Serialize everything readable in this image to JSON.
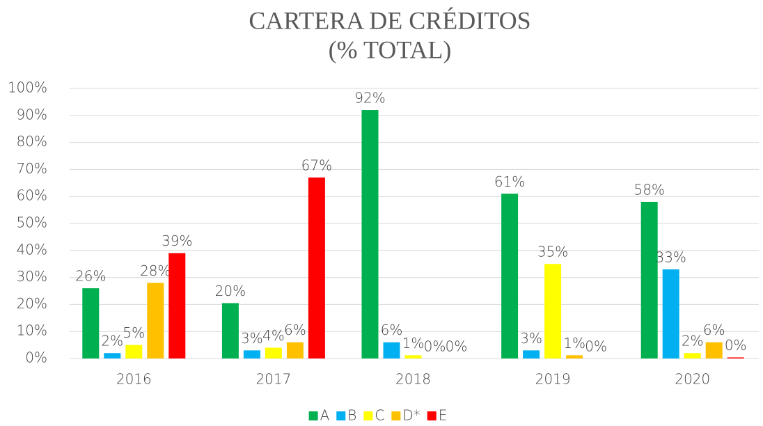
{
  "chart_data": {
    "type": "bar",
    "title": "CARTERA DE CRÉDITOS",
    "subtitle": "(% TOTAL)",
    "categories": [
      "2016",
      "2017",
      "2018",
      "2019",
      "2020"
    ],
    "series": [
      {
        "name": "A",
        "color": "#00b050",
        "values": [
          26,
          20.5,
          92,
          61,
          58
        ],
        "value_labels": [
          "26%",
          "20%",
          "92%",
          "61%",
          "58%"
        ]
      },
      {
        "name": "B",
        "color": "#00b0f0",
        "values": [
          2,
          3,
          6,
          3,
          33
        ],
        "value_labels": [
          "2%",
          "3%",
          "6%",
          "3%",
          "33%"
        ]
      },
      {
        "name": "C",
        "color": "#ffff00",
        "values": [
          5,
          4,
          1.2,
          35,
          2
        ],
        "value_labels": [
          "5%",
          "4%",
          "1%",
          "35%",
          "2%"
        ]
      },
      {
        "name": "D*",
        "color": "#ffc000",
        "values": [
          28,
          6,
          0,
          1.2,
          6
        ],
        "value_labels": [
          "28%",
          "6%",
          "0%",
          "1%",
          "6%"
        ]
      },
      {
        "name": "E",
        "color": "#ff0000",
        "values": [
          39,
          67,
          0,
          0,
          0.4
        ],
        "value_labels": [
          "39%",
          "67%",
          "0%",
          "0%",
          "0%"
        ]
      }
    ],
    "ylim": [
      0,
      100
    ],
    "yticks": [
      {
        "value": 0,
        "label": "0%"
      },
      {
        "value": 10,
        "label": "10%"
      },
      {
        "value": 20,
        "label": "20%"
      },
      {
        "value": 30,
        "label": "30%"
      },
      {
        "value": 40,
        "label": "40%"
      },
      {
        "value": 50,
        "label": "50%"
      },
      {
        "value": 60,
        "label": "60%"
      },
      {
        "value": 70,
        "label": "70%"
      },
      {
        "value": 80,
        "label": "80%"
      },
      {
        "value": 90,
        "label": "90%"
      },
      {
        "value": 100,
        "label": "100%"
      }
    ],
    "grid": true,
    "legend": "bottom"
  }
}
